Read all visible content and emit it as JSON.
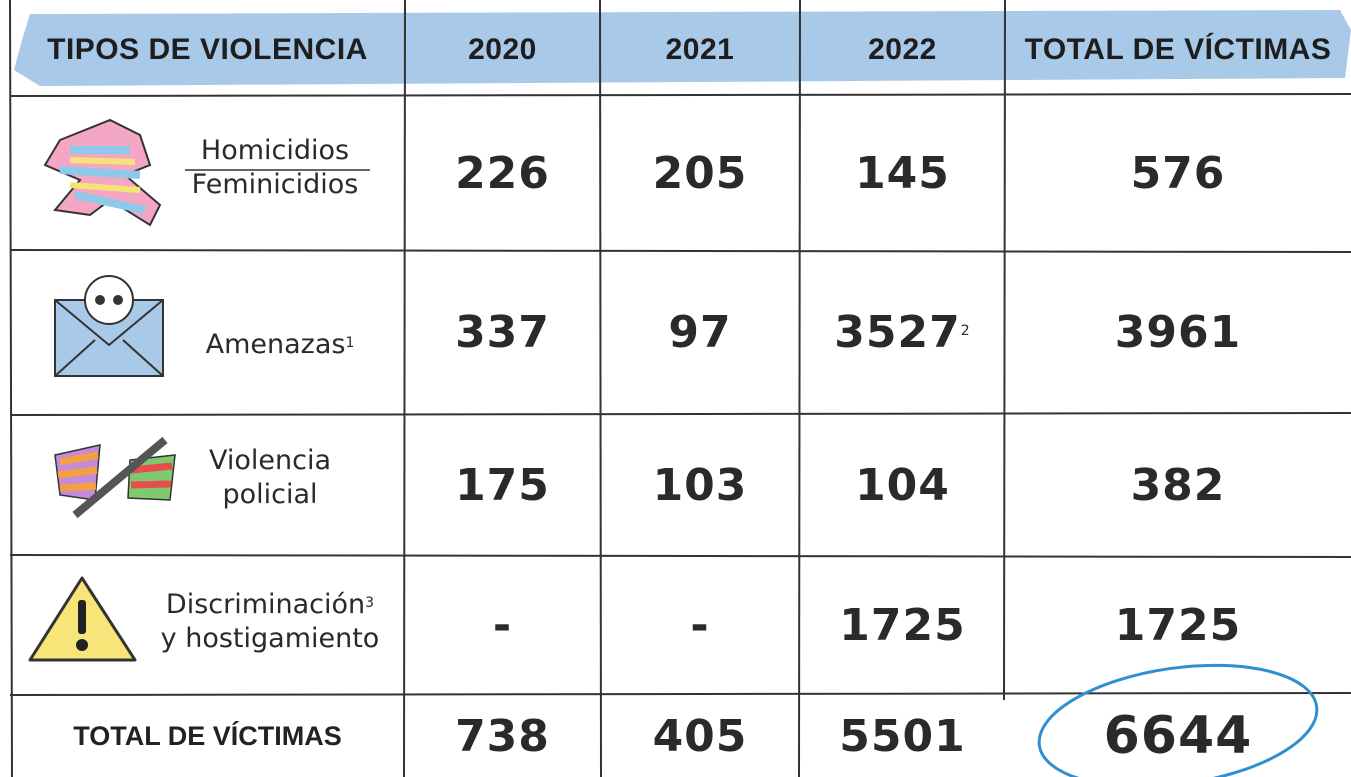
{
  "table": {
    "header": [
      "TIPOS DE VIOLENCIA",
      "2020",
      "2021",
      "2022",
      "TOTAL DE VÍCTIMAS"
    ],
    "rows": [
      {
        "label": [
          "Homicidios",
          "Feminicidios"
        ],
        "cells": [
          "226",
          "205",
          "145",
          "576"
        ]
      },
      {
        "label": [
          "Amenazas"
        ],
        "label_note": "1",
        "cells": [
          "337",
          "97",
          "3527",
          "3961"
        ],
        "cell_note": "2"
      },
      {
        "label": [
          "Violencia",
          "policial"
        ],
        "cells": [
          "175",
          "103",
          "104",
          "382"
        ]
      },
      {
        "label": [
          "Discriminación",
          "y hostigamiento"
        ],
        "label_note": "3",
        "cells": [
          "-",
          "-",
          "1725",
          "1725"
        ]
      }
    ],
    "total": {
      "label": "TOTAL DE VÍCTIMAS",
      "cells": [
        "738",
        "405",
        "5501",
        "6644"
      ]
    }
  }
}
